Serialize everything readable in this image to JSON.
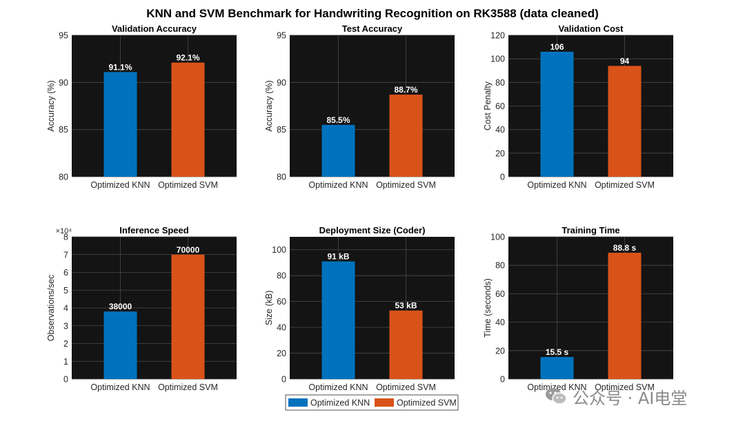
{
  "figure_title": "KNN and SVM Benchmark for Handwriting Recognition on RK3588 (data cleaned)",
  "colors": {
    "knn": "#0072BD",
    "svm": "#D95319",
    "axes_bg": "#141414",
    "grid": "#4a4a4a"
  },
  "legend": {
    "placement": "bottom-center",
    "entries": [
      "Optimized KNN",
      "Optimized SVM"
    ]
  },
  "watermark": {
    "text": "公众号 · AI电堂",
    "icon": "wechat-logo-icon"
  },
  "chart_data": [
    {
      "type": "bar",
      "title": "Validation Accuracy",
      "ylabel": "Accuracy (%)",
      "xlabel": "",
      "categories": [
        "Optimized KNN",
        "Optimized SVM"
      ],
      "values": [
        91.1,
        92.1
      ],
      "labels": [
        "91.1%",
        "92.1%"
      ],
      "ylim": [
        80,
        95
      ],
      "yticks": [
        80,
        85,
        90,
        95
      ],
      "ytick_labels": [
        "80",
        "85",
        "90",
        "95"
      ],
      "grid": true,
      "exponent": ""
    },
    {
      "type": "bar",
      "title": "Test Accuracy",
      "ylabel": "Accuracy (%)",
      "xlabel": "",
      "categories": [
        "Optimized KNN",
        "Optimized SVM"
      ],
      "values": [
        85.5,
        88.7
      ],
      "labels": [
        "85.5%",
        "88.7%"
      ],
      "ylim": [
        80,
        95
      ],
      "yticks": [
        80,
        85,
        90,
        95
      ],
      "ytick_labels": [
        "80",
        "85",
        "90",
        "95"
      ],
      "grid": true,
      "exponent": ""
    },
    {
      "type": "bar",
      "title": "Validation Cost",
      "ylabel": "Cost Penalty",
      "xlabel": "",
      "categories": [
        "Optimized KNN",
        "Optimized SVM"
      ],
      "values": [
        106,
        94
      ],
      "labels": [
        "106",
        "94"
      ],
      "ylim": [
        0,
        120
      ],
      "yticks": [
        0,
        20,
        40,
        60,
        80,
        100,
        120
      ],
      "ytick_labels": [
        "0",
        "20",
        "40",
        "60",
        "80",
        "100",
        "120"
      ],
      "grid": true,
      "exponent": ""
    },
    {
      "type": "bar",
      "title": "Inference Speed",
      "ylabel": "Observations/sec",
      "xlabel": "",
      "categories": [
        "Optimized KNN",
        "Optimized SVM"
      ],
      "values": [
        38000,
        70000
      ],
      "labels": [
        "38000",
        "70000"
      ],
      "ylim": [
        0,
        80000
      ],
      "yticks": [
        0,
        10000,
        20000,
        30000,
        40000,
        50000,
        60000,
        70000,
        80000
      ],
      "ytick_labels": [
        "0",
        "1",
        "2",
        "3",
        "4",
        "5",
        "6",
        "7",
        "8"
      ],
      "grid": true,
      "exponent": "×10⁴"
    },
    {
      "type": "bar",
      "title": "Deployment Size (Coder)",
      "ylabel": "Size (kB)",
      "xlabel": "",
      "categories": [
        "Optimized KNN",
        "Optimized SVM"
      ],
      "values": [
        91,
        53
      ],
      "labels": [
        "91 kB",
        "53 kB"
      ],
      "ylim": [
        0,
        110
      ],
      "yticks": [
        0,
        20,
        40,
        60,
        80,
        100
      ],
      "ytick_labels": [
        "0",
        "20",
        "40",
        "60",
        "80",
        "100"
      ],
      "grid": true,
      "exponent": ""
    },
    {
      "type": "bar",
      "title": "Training Time",
      "ylabel": "Time (seconds)",
      "xlabel": "",
      "categories": [
        "Optimized KNN",
        "Optimized SVM"
      ],
      "values": [
        15.5,
        88.8
      ],
      "labels": [
        "15.5 s",
        "88.8 s"
      ],
      "ylim": [
        0,
        100
      ],
      "yticks": [
        0,
        20,
        40,
        60,
        80,
        100
      ],
      "ytick_labels": [
        "0",
        "20",
        "40",
        "60",
        "80",
        "100"
      ],
      "grid": true,
      "exponent": ""
    }
  ]
}
